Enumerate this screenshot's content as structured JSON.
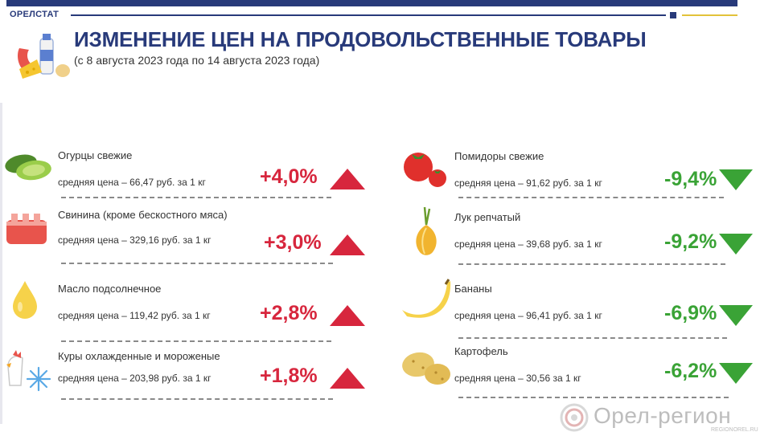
{
  "header": {
    "brand": "ОРЕЛСТАТ",
    "title": "ИЗМЕНЕНИЕ ЦЕН НА ПРОДОВОЛЬСТВЕННЫЕ ТОВАРЫ",
    "subtitle": "(с 8 августа 2023 года по 14 августа 2023 года)"
  },
  "colors": {
    "navy": "#283a7a",
    "up_red": "#d7263d",
    "down_green": "#3aa336",
    "accent_yellow": "#e3c23a"
  },
  "items_left": [
    {
      "name": "Огурцы свежие",
      "price": "средняя цена – 66,47 руб. за 1 кг",
      "change": "+4,0%",
      "direction": "up",
      "icon": "cucumber-icon"
    },
    {
      "name": "Свинина (кроме бескостного мяса)",
      "price": "средняя цена – 329,16 руб. за 1 кг",
      "change": "+3,0%",
      "direction": "up",
      "icon": "pork-icon"
    },
    {
      "name": "Масло подсолнечное",
      "price": "средняя цена – 119,42 руб. за 1 кг",
      "change": "+2,8%",
      "direction": "up",
      "icon": "oil-drop-icon"
    },
    {
      "name": "Куры охлажденные и мороженые",
      "price": "средняя цена – 203,98 руб. за 1 кг",
      "change": "+1,8%",
      "direction": "up",
      "icon": "frozen-chicken-icon"
    }
  ],
  "items_right": [
    {
      "name": "Помидоры свежие",
      "price": "средняя цена – 91,62 руб. за 1 кг",
      "change": "-9,4%",
      "direction": "down",
      "icon": "tomato-icon"
    },
    {
      "name": "Лук репчатый",
      "price": "средняя цена –  39,68 руб. за  1 кг",
      "change": "-9,2%",
      "direction": "down",
      "icon": "onion-icon"
    },
    {
      "name": "Бананы",
      "price": "средняя цена – 96,41 руб. за 1 кг",
      "change": "-6,9%",
      "direction": "down",
      "icon": "banana-icon"
    },
    {
      "name": "Картофель",
      "price": "средняя цена – 30,56 за 1 кг",
      "change": "-6,2%",
      "direction": "down",
      "icon": "potato-icon"
    }
  ],
  "watermark": {
    "text": "Орел-регион",
    "sub": "REGIONOREL.RU"
  }
}
